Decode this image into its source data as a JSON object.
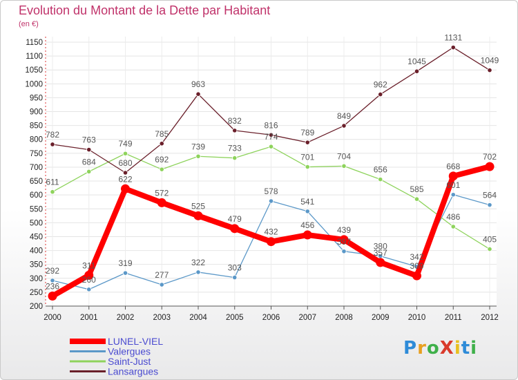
{
  "title": "Evolution du Montant de la Dette par Habitant",
  "subtitle": "(en €)",
  "logo_text": "ProXiti",
  "chart_data": {
    "type": "line",
    "title": "Evolution du Montant de la Dette par Habitant",
    "subtitle": "(en €)",
    "xlabel": "",
    "ylabel": "",
    "ylim": [
      200,
      1150
    ],
    "y_ticks": [
      200,
      250,
      300,
      350,
      400,
      450,
      500,
      550,
      600,
      650,
      700,
      750,
      800,
      850,
      900,
      950,
      1000,
      1050,
      1100,
      1150
    ],
    "x": [
      "2000",
      "2001",
      "2002",
      "2003",
      "2004",
      "2005",
      "2006",
      "2007",
      "2008",
      "2009",
      "2010",
      "2011",
      "2012"
    ],
    "grid": true,
    "legend_position": "bottom-left",
    "series": [
      {
        "name": "LUNEL-VIEL",
        "color": "#ff0000",
        "values": [
          236,
          311,
          622,
          572,
          525,
          479,
          432,
          456,
          439,
          357,
          309,
          668,
          702
        ],
        "labels": [
          "236",
          "311",
          "622",
          "572",
          "525",
          "479",
          "432",
          "456",
          "439",
          "357",
          "309",
          "668",
          "702"
        ]
      },
      {
        "name": "Valergues",
        "color": "#5b98c8",
        "values": [
          292,
          260,
          319,
          277,
          322,
          303,
          578,
          541,
          397,
          380,
          342,
          601,
          564
        ],
        "labels": [
          "292",
          "260",
          "319",
          "277",
          "322",
          "303",
          "578",
          "541",
          "397",
          "380",
          "342",
          "601",
          "564"
        ]
      },
      {
        "name": "Saint-Just",
        "color": "#8ed35c",
        "values": [
          611,
          684,
          749,
          692,
          739,
          733,
          774,
          701,
          704,
          656,
          585,
          486,
          405
        ],
        "labels": [
          "611",
          "684",
          "749",
          "692",
          "739",
          "733",
          "774",
          "701",
          "704",
          "656",
          "585",
          "486",
          "405"
        ]
      },
      {
        "name": "Lansargues",
        "color": "#6a1f2a",
        "values": [
          782,
          763,
          680,
          785,
          963,
          832,
          816,
          789,
          849,
          962,
          1045,
          1131,
          1049
        ],
        "labels": [
          "782",
          "763",
          "680",
          "785",
          "963",
          "832",
          "816",
          "789",
          "849",
          "962",
          "1045",
          "1131",
          "1049"
        ]
      }
    ]
  }
}
